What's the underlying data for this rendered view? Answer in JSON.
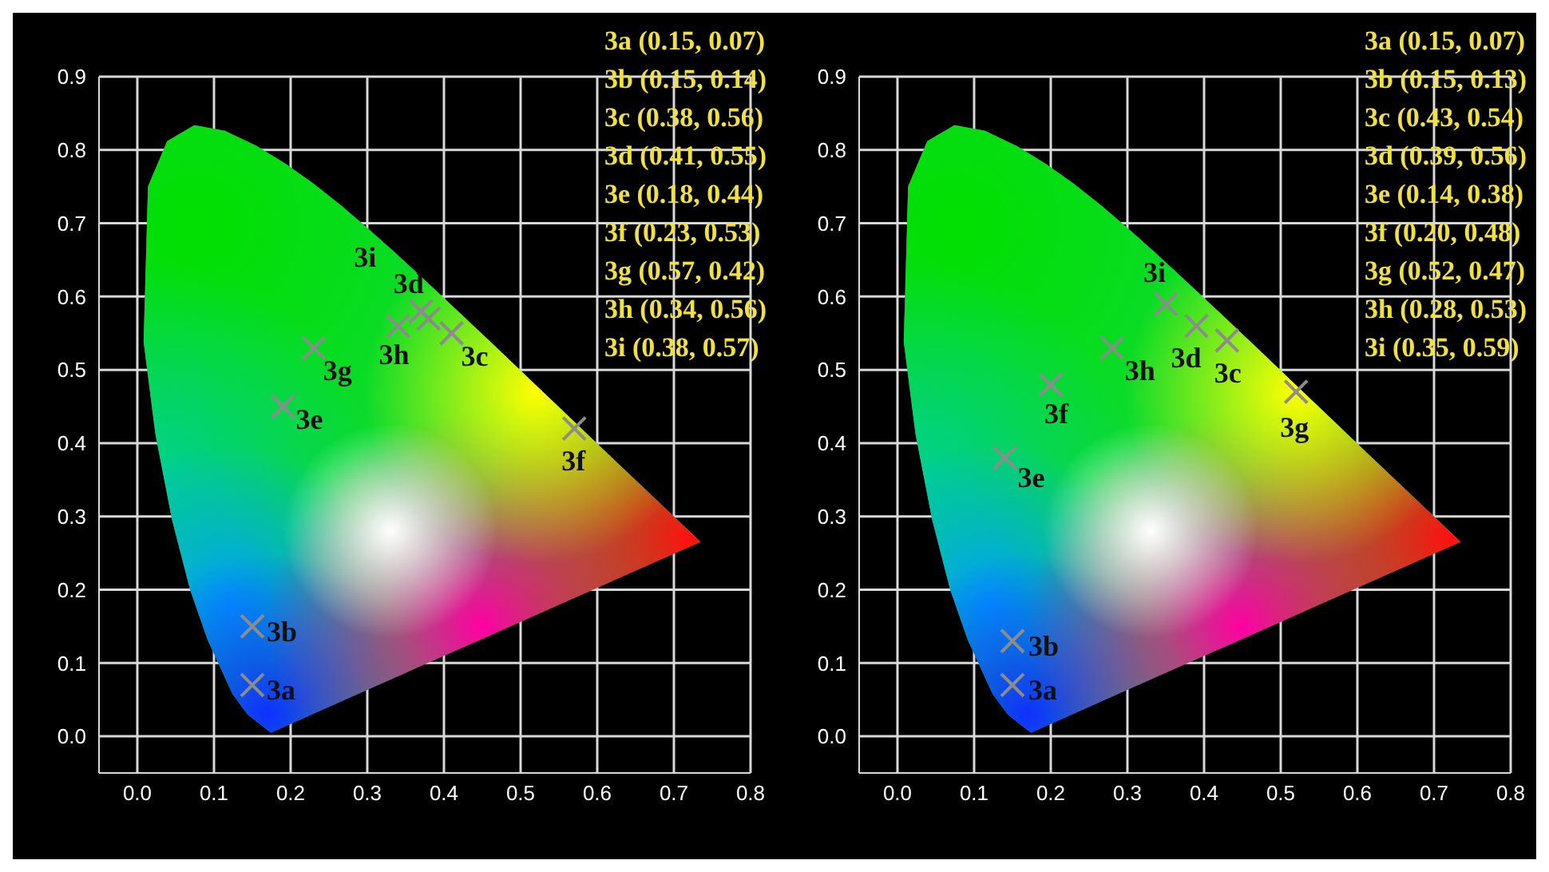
{
  "chart_data": [
    {
      "type": "scatter",
      "xlim": [
        -0.05,
        0.8
      ],
      "ylim": [
        -0.05,
        0.9
      ],
      "xticks": [
        {
          "value": 0,
          "label": "0.0"
        },
        {
          "value": 0.1,
          "label": "0.1"
        },
        {
          "value": 0.2,
          "label": "0.2"
        },
        {
          "value": 0.3,
          "label": "0.3"
        },
        {
          "value": 0.4,
          "label": "0.4"
        },
        {
          "value": 0.5,
          "label": "0.5"
        },
        {
          "value": 0.6,
          "label": "0.6"
        },
        {
          "value": 0.7,
          "label": "0.7"
        },
        {
          "value": 0.8,
          "label": "0.8"
        }
      ],
      "yticks": [
        {
          "value": 0,
          "label": "0.0"
        },
        {
          "value": 0.1,
          "label": "0.1"
        },
        {
          "value": 0.2,
          "label": "0.2"
        },
        {
          "value": 0.3,
          "label": "0.3"
        },
        {
          "value": 0.4,
          "label": "0.4"
        },
        {
          "value": 0.5,
          "label": "0.5"
        },
        {
          "value": 0.6,
          "label": "0.6"
        },
        {
          "value": 0.7,
          "label": "0.7"
        },
        {
          "value": 0.8,
          "label": "0.8"
        },
        {
          "value": 0.9,
          "label": "0.9"
        }
      ],
      "grid": true,
      "legend": false,
      "marker": "cross",
      "series": [
        {
          "name": "3a",
          "color": "#8c8c8c",
          "x": [
            0.15
          ],
          "values": [
            0.07
          ]
        },
        {
          "name": "3b",
          "color": "#8c8c8c",
          "x": [
            0.15
          ],
          "values": [
            0.15
          ]
        },
        {
          "name": "3c",
          "color": "#8c8c8c",
          "x": [
            0.41
          ],
          "values": [
            0.55
          ]
        },
        {
          "name": "3d",
          "color": "#8c8c8c",
          "x": [
            0.38
          ],
          "values": [
            0.57
          ]
        },
        {
          "name": "3e",
          "color": "#8c8c8c",
          "x": [
            0.19
          ],
          "values": [
            0.45
          ]
        },
        {
          "name": "3f",
          "color": "#8c8c8c",
          "x": [
            0.57
          ],
          "values": [
            0.42
          ]
        },
        {
          "name": "3g",
          "color": "#8c8c8c",
          "x": [
            0.23
          ],
          "values": [
            0.53
          ]
        },
        {
          "name": "3h",
          "color": "#8c8c8c",
          "x": [
            0.34
          ],
          "values": [
            0.56
          ]
        },
        {
          "name": "3i",
          "color": "#8c8c8c",
          "x": [
            0.37
          ],
          "values": [
            0.58
          ]
        }
      ],
      "annotations": [
        "3a (0.15, 0.07)",
        "3b (0.15, 0.14)",
        "3c (0.38, 0.56)",
        "3d (0.41, 0.55)",
        "3e (0.18, 0.44)",
        "3f (0.23, 0.53)",
        "3g (0.57, 0.42)",
        "3h (0.34, 0.56)",
        "3i (0.38, 0.57)"
      ]
    },
    {
      "type": "scatter",
      "xlim": [
        -0.05,
        0.8
      ],
      "ylim": [
        -0.05,
        0.9
      ],
      "xticks": [
        {
          "value": 0,
          "label": "0.0"
        },
        {
          "value": 0.1,
          "label": "0.1"
        },
        {
          "value": 0.2,
          "label": "0.2"
        },
        {
          "value": 0.3,
          "label": "0.3"
        },
        {
          "value": 0.4,
          "label": "0.4"
        },
        {
          "value": 0.5,
          "label": "0.5"
        },
        {
          "value": 0.6,
          "label": "0.6"
        },
        {
          "value": 0.7,
          "label": "0.7"
        },
        {
          "value": 0.8,
          "label": "0.8"
        }
      ],
      "yticks": [
        {
          "value": 0,
          "label": "0.0"
        },
        {
          "value": 0.1,
          "label": "0.1"
        },
        {
          "value": 0.2,
          "label": "0.2"
        },
        {
          "value": 0.3,
          "label": "0.3"
        },
        {
          "value": 0.4,
          "label": "0.4"
        },
        {
          "value": 0.5,
          "label": "0.5"
        },
        {
          "value": 0.6,
          "label": "0.6"
        },
        {
          "value": 0.7,
          "label": "0.7"
        },
        {
          "value": 0.8,
          "label": "0.8"
        },
        {
          "value": 0.9,
          "label": "0.9"
        }
      ],
      "grid": true,
      "legend": false,
      "marker": "cross",
      "series": [
        {
          "name": "3a",
          "color": "#8c8c8c",
          "x": [
            0.15
          ],
          "values": [
            0.07
          ]
        },
        {
          "name": "3b",
          "color": "#8c8c8c",
          "x": [
            0.15
          ],
          "values": [
            0.13
          ]
        },
        {
          "name": "3c",
          "color": "#8c8c8c",
          "x": [
            0.43
          ],
          "values": [
            0.54
          ]
        },
        {
          "name": "3d",
          "color": "#8c8c8c",
          "x": [
            0.39
          ],
          "values": [
            0.56
          ]
        },
        {
          "name": "3e",
          "color": "#8c8c8c",
          "x": [
            0.14
          ],
          "values": [
            0.38
          ]
        },
        {
          "name": "3f",
          "color": "#8c8c8c",
          "x": [
            0.2
          ],
          "values": [
            0.48
          ]
        },
        {
          "name": "3g",
          "color": "#8c8c8c",
          "x": [
            0.52
          ],
          "values": [
            0.47
          ]
        },
        {
          "name": "3h",
          "color": "#8c8c8c",
          "x": [
            0.28
          ],
          "values": [
            0.53
          ]
        },
        {
          "name": "3i",
          "color": "#8c8c8c",
          "x": [
            0.35
          ],
          "values": [
            0.59
          ]
        }
      ],
      "annotations": [
        "3a (0.15, 0.07)",
        "3b (0.15, 0.13)",
        "3c (0.43, 0.54)",
        "3d (0.39, 0.56)",
        "3e (0.14, 0.38)",
        "3f (0.20, 0.48)",
        "3g (0.52, 0.47)",
        "3h (0.28, 0.53)",
        "3i (0.35, 0.59)"
      ]
    }
  ]
}
